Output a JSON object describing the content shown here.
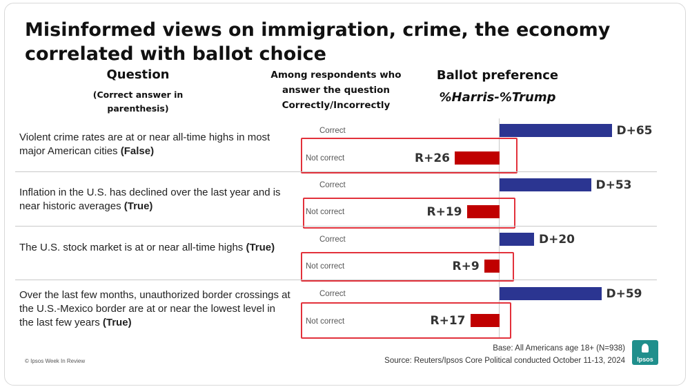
{
  "title": "Misinformed views on immigration, crime, the economy correlated with ballot choice",
  "headers": {
    "question": "Question",
    "question_sub": "(Correct answer in parenthesis)",
    "among": "Among respondents who answer the question Correctly/Incorrectly",
    "ballot": "Ballot preference",
    "pct": "%Harris-%Trump"
  },
  "rows": [
    {
      "question": "Violent crime rates are at or near all-time highs in most major American cities",
      "answer": "(False)",
      "correct_label": "Correct",
      "incorrect_label": "Not correct",
      "correct_value_label": "D+65",
      "incorrect_value_label": "R+26"
    },
    {
      "question": "Inflation in the U.S. has declined over the last year and is near historic averages",
      "answer": "(True)",
      "correct_label": "Correct",
      "incorrect_label": "Not correct",
      "correct_value_label": "D+53",
      "incorrect_value_label": "R+19"
    },
    {
      "question": "The U.S. stock market is at or near all-time highs",
      "answer": "(True)",
      "correct_label": "Correct",
      "incorrect_label": "Not correct",
      "correct_value_label": "D+20",
      "incorrect_value_label": "R+9"
    },
    {
      "question": "Over the last few months, unauthorized border crossings at the U.S.-Mexico border are at or near the lowest level in the last few years",
      "answer": "(True)",
      "correct_label": "Correct",
      "incorrect_label": "Not correct",
      "correct_value_label": "D+59",
      "incorrect_value_label": "R+17"
    }
  ],
  "footer": {
    "base": "Base: All Americans age 18+ (N=938)",
    "source": "Source: Reuters/Ipsos Core Political conducted October 11-13, 2024",
    "copyright": "© Ipsos Week In Review",
    "logo": "Ipsos"
  },
  "colors": {
    "harris": "#2b3591",
    "trump": "#c00000",
    "highlight": "#e2303a"
  },
  "chart_data": {
    "type": "bar",
    "orientation": "horizontal",
    "categories": [
      "Violent crime rates are at or near all-time highs in most major American cities (False)",
      "Inflation in the U.S. has declined over the last year and is near historic averages (True)",
      "The U.S. stock market is at or near all-time highs (True)",
      "Over the last few months, unauthorized border crossings at the U.S.-Mexico border are at or near the lowest level in the last few years (True)"
    ],
    "series": [
      {
        "name": "Correct",
        "values": [
          65,
          53,
          20,
          59
        ]
      },
      {
        "name": "Not correct",
        "values": [
          -26,
          -19,
          -9,
          -17
        ]
      }
    ],
    "title": "Misinformed views on immigration, crime, the economy correlated with ballot choice",
    "xlabel": "%Harris-%Trump",
    "ylabel": "",
    "xlim": [
      -30,
      70
    ]
  }
}
